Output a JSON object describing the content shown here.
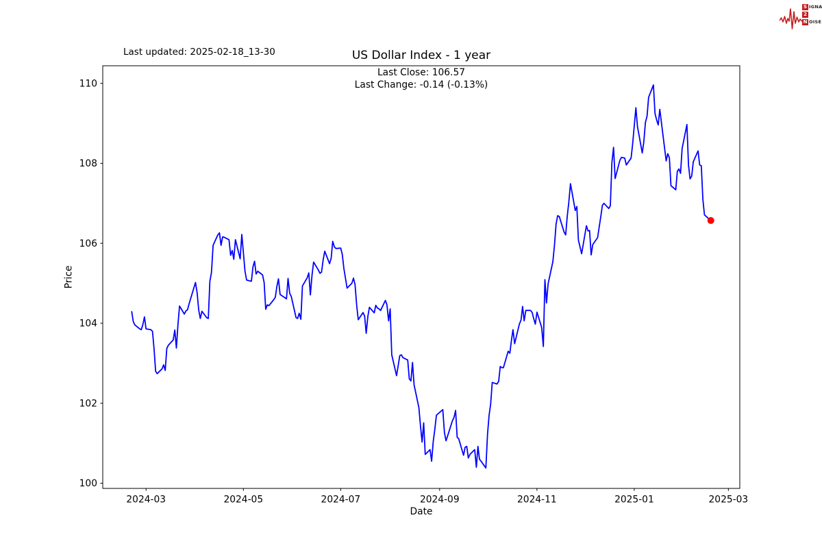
{
  "header": {
    "last_updated": "Last updated: 2025-02-18_13-30"
  },
  "logo": {
    "word1_initial": "S",
    "word1_rest": "IGNAL",
    "word2_initial": "2",
    "word2_rest": "",
    "word3_initial": "N",
    "word3_rest": "OISE",
    "color": "#c41f1f",
    "icon": "waveform-icon"
  },
  "chart_data": {
    "type": "line",
    "title": "US Dollar Index - 1 year",
    "last_close_label": "Last Close: 106.57",
    "last_change_label": "Last Change: -0.14 (-0.13%)",
    "last_close": 106.57,
    "last_change": -0.14,
    "last_change_pct": "-0.13%",
    "xlabel": "Date",
    "ylabel": "Price",
    "x_ticks": [
      "2024-03",
      "2024-05",
      "2024-07",
      "2024-09",
      "2024-11",
      "2025-01",
      "2025-03"
    ],
    "y_ticks": [
      100,
      102,
      104,
      106,
      108,
      110
    ],
    "ylim": [
      99.87,
      110.44
    ],
    "x_epoch": "2024-03-01",
    "xlim_days": [
      -27.15,
      372.15
    ],
    "grid": false,
    "legend": "none",
    "line_color": "#0000ff",
    "last_point_color": "#ff0000",
    "axis_color": "#000000",
    "points": [
      [
        "2024-02-21",
        104.29
      ],
      [
        "2024-02-22",
        104.04
      ],
      [
        "2024-02-23",
        103.96
      ],
      [
        "2024-02-26",
        103.86
      ],
      [
        "2024-02-27",
        103.84
      ],
      [
        "2024-02-28",
        103.97
      ],
      [
        "2024-02-29",
        104.16
      ],
      [
        "2024-03-01",
        103.86
      ],
      [
        "2024-03-04",
        103.84
      ],
      [
        "2024-03-05",
        103.8
      ],
      [
        "2024-03-06",
        103.36
      ],
      [
        "2024-03-07",
        102.8
      ],
      [
        "2024-03-08",
        102.74
      ],
      [
        "2024-03-11",
        102.86
      ],
      [
        "2024-03-12",
        102.96
      ],
      [
        "2024-03-13",
        102.82
      ],
      [
        "2024-03-14",
        103.37
      ],
      [
        "2024-03-15",
        103.45
      ],
      [
        "2024-03-18",
        103.58
      ],
      [
        "2024-03-19",
        103.83
      ],
      [
        "2024-03-20",
        103.38
      ],
      [
        "2024-03-21",
        103.97
      ],
      [
        "2024-03-22",
        104.43
      ],
      [
        "2024-03-25",
        104.23
      ],
      [
        "2024-03-26",
        104.31
      ],
      [
        "2024-03-27",
        104.34
      ],
      [
        "2024-03-28",
        104.49
      ],
      [
        "2024-04-01",
        105.02
      ],
      [
        "2024-04-02",
        104.76
      ],
      [
        "2024-04-03",
        104.33
      ],
      [
        "2024-04-04",
        104.12
      ],
      [
        "2024-04-05",
        104.3
      ],
      [
        "2024-04-08",
        104.14
      ],
      [
        "2024-04-09",
        104.12
      ],
      [
        "2024-04-10",
        105.05
      ],
      [
        "2024-04-11",
        105.27
      ],
      [
        "2024-04-12",
        105.95
      ],
      [
        "2024-04-15",
        106.21
      ],
      [
        "2024-04-16",
        106.26
      ],
      [
        "2024-04-17",
        105.95
      ],
      [
        "2024-04-18",
        106.16
      ],
      [
        "2024-04-19",
        106.15
      ],
      [
        "2024-04-22",
        106.09
      ],
      [
        "2024-04-23",
        105.7
      ],
      [
        "2024-04-24",
        105.82
      ],
      [
        "2024-04-25",
        105.6
      ],
      [
        "2024-04-26",
        106.09
      ],
      [
        "2024-04-29",
        105.61
      ],
      [
        "2024-04-30",
        106.22
      ],
      [
        "2024-05-01",
        105.77
      ],
      [
        "2024-05-02",
        105.31
      ],
      [
        "2024-05-03",
        105.08
      ],
      [
        "2024-05-06",
        105.05
      ],
      [
        "2024-05-07",
        105.41
      ],
      [
        "2024-05-08",
        105.55
      ],
      [
        "2024-05-09",
        105.23
      ],
      [
        "2024-05-10",
        105.3
      ],
      [
        "2024-05-13",
        105.21
      ],
      [
        "2024-05-14",
        105.02
      ],
      [
        "2024-05-15",
        104.35
      ],
      [
        "2024-05-16",
        104.46
      ],
      [
        "2024-05-17",
        104.44
      ],
      [
        "2024-05-20",
        104.59
      ],
      [
        "2024-05-21",
        104.65
      ],
      [
        "2024-05-22",
        104.92
      ],
      [
        "2024-05-23",
        105.11
      ],
      [
        "2024-05-24",
        104.72
      ],
      [
        "2024-05-28",
        104.61
      ],
      [
        "2024-05-29",
        105.12
      ],
      [
        "2024-05-30",
        104.75
      ],
      [
        "2024-05-31",
        104.67
      ],
      [
        "2024-06-03",
        104.14
      ],
      [
        "2024-06-04",
        104.12
      ],
      [
        "2024-06-05",
        104.25
      ],
      [
        "2024-06-06",
        104.1
      ],
      [
        "2024-06-07",
        104.93
      ],
      [
        "2024-06-10",
        105.14
      ],
      [
        "2024-06-11",
        105.26
      ],
      [
        "2024-06-12",
        104.71
      ],
      [
        "2024-06-13",
        105.2
      ],
      [
        "2024-06-14",
        105.53
      ],
      [
        "2024-06-17",
        105.33
      ],
      [
        "2024-06-18",
        105.25
      ],
      [
        "2024-06-19",
        105.28
      ],
      [
        "2024-06-20",
        105.59
      ],
      [
        "2024-06-21",
        105.8
      ],
      [
        "2024-06-24",
        105.49
      ],
      [
        "2024-06-25",
        105.62
      ],
      [
        "2024-06-26",
        106.05
      ],
      [
        "2024-06-27",
        105.91
      ],
      [
        "2024-06-28",
        105.87
      ],
      [
        "2024-07-01",
        105.88
      ],
      [
        "2024-07-02",
        105.72
      ],
      [
        "2024-07-03",
        105.37
      ],
      [
        "2024-07-05",
        104.88
      ],
      [
        "2024-07-08",
        105.0
      ],
      [
        "2024-07-09",
        105.13
      ],
      [
        "2024-07-10",
        104.97
      ],
      [
        "2024-07-11",
        104.45
      ],
      [
        "2024-07-12",
        104.09
      ],
      [
        "2024-07-15",
        104.27
      ],
      [
        "2024-07-16",
        104.18
      ],
      [
        "2024-07-17",
        103.75
      ],
      [
        "2024-07-18",
        104.17
      ],
      [
        "2024-07-19",
        104.4
      ],
      [
        "2024-07-22",
        104.26
      ],
      [
        "2024-07-23",
        104.45
      ],
      [
        "2024-07-24",
        104.38
      ],
      [
        "2024-07-25",
        104.36
      ],
      [
        "2024-07-26",
        104.32
      ],
      [
        "2024-07-29",
        104.57
      ],
      [
        "2024-07-30",
        104.46
      ],
      [
        "2024-07-31",
        104.06
      ],
      [
        "2024-08-01",
        104.36
      ],
      [
        "2024-08-02",
        103.21
      ],
      [
        "2024-08-05",
        102.69
      ],
      [
        "2024-08-06",
        102.93
      ],
      [
        "2024-08-07",
        103.19
      ],
      [
        "2024-08-08",
        103.21
      ],
      [
        "2024-08-09",
        103.14
      ],
      [
        "2024-08-12",
        103.08
      ],
      [
        "2024-08-13",
        102.61
      ],
      [
        "2024-08-14",
        102.56
      ],
      [
        "2024-08-15",
        103.02
      ],
      [
        "2024-08-16",
        102.46
      ],
      [
        "2024-08-19",
        101.89
      ],
      [
        "2024-08-20",
        101.44
      ],
      [
        "2024-08-21",
        101.03
      ],
      [
        "2024-08-22",
        101.51
      ],
      [
        "2024-08-23",
        100.72
      ],
      [
        "2024-08-26",
        100.84
      ],
      [
        "2024-08-27",
        100.55
      ],
      [
        "2024-08-28",
        101.05
      ],
      [
        "2024-08-29",
        101.35
      ],
      [
        "2024-08-30",
        101.7
      ],
      [
        "2024-09-03",
        101.84
      ],
      [
        "2024-09-04",
        101.27
      ],
      [
        "2024-09-05",
        101.06
      ],
      [
        "2024-09-06",
        101.18
      ],
      [
        "2024-09-09",
        101.56
      ],
      [
        "2024-09-10",
        101.64
      ],
      [
        "2024-09-11",
        101.82
      ],
      [
        "2024-09-12",
        101.15
      ],
      [
        "2024-09-13",
        101.11
      ],
      [
        "2024-09-16",
        100.7
      ],
      [
        "2024-09-17",
        100.9
      ],
      [
        "2024-09-18",
        100.92
      ],
      [
        "2024-09-19",
        100.63
      ],
      [
        "2024-09-20",
        100.72
      ],
      [
        "2024-09-23",
        100.84
      ],
      [
        "2024-09-24",
        100.4
      ],
      [
        "2024-09-25",
        100.92
      ],
      [
        "2024-09-26",
        100.6
      ],
      [
        "2024-09-27",
        100.55
      ],
      [
        "2024-09-30",
        100.38
      ],
      [
        "2024-10-01",
        101.22
      ],
      [
        "2024-10-02",
        101.7
      ],
      [
        "2024-10-03",
        101.98
      ],
      [
        "2024-10-04",
        102.52
      ],
      [
        "2024-10-07",
        102.48
      ],
      [
        "2024-10-08",
        102.55
      ],
      [
        "2024-10-09",
        102.92
      ],
      [
        "2024-10-10",
        102.89
      ],
      [
        "2024-10-11",
        102.89
      ],
      [
        "2024-10-14",
        103.3
      ],
      [
        "2024-10-15",
        103.25
      ],
      [
        "2024-10-16",
        103.57
      ],
      [
        "2024-10-17",
        103.84
      ],
      [
        "2024-10-18",
        103.49
      ],
      [
        "2024-10-21",
        103.98
      ],
      [
        "2024-10-22",
        104.08
      ],
      [
        "2024-10-23",
        104.42
      ],
      [
        "2024-10-24",
        104.06
      ],
      [
        "2024-10-25",
        104.32
      ],
      [
        "2024-10-28",
        104.32
      ],
      [
        "2024-10-29",
        104.27
      ],
      [
        "2024-10-30",
        104.11
      ],
      [
        "2024-10-31",
        103.98
      ],
      [
        "2024-11-01",
        104.28
      ],
      [
        "2024-11-04",
        103.89
      ],
      [
        "2024-11-05",
        103.42
      ],
      [
        "2024-11-06",
        105.09
      ],
      [
        "2024-11-07",
        104.51
      ],
      [
        "2024-11-08",
        104.99
      ],
      [
        "2024-11-11",
        105.54
      ],
      [
        "2024-11-12",
        105.96
      ],
      [
        "2024-11-13",
        106.48
      ],
      [
        "2024-11-14",
        106.69
      ],
      [
        "2024-11-15",
        106.67
      ],
      [
        "2024-11-18",
        106.28
      ],
      [
        "2024-11-19",
        106.21
      ],
      [
        "2024-11-20",
        106.68
      ],
      [
        "2024-11-21",
        107.03
      ],
      [
        "2024-11-22",
        107.49
      ],
      [
        "2024-11-25",
        106.82
      ],
      [
        "2024-11-26",
        106.92
      ],
      [
        "2024-11-27",
        106.08
      ],
      [
        "2024-11-29",
        105.74
      ],
      [
        "2024-12-02",
        106.44
      ],
      [
        "2024-12-03",
        106.31
      ],
      [
        "2024-12-04",
        106.32
      ],
      [
        "2024-12-05",
        105.71
      ],
      [
        "2024-12-06",
        105.97
      ],
      [
        "2024-12-09",
        106.14
      ],
      [
        "2024-12-10",
        106.4
      ],
      [
        "2024-12-11",
        106.66
      ],
      [
        "2024-12-12",
        106.95
      ],
      [
        "2024-12-13",
        107.0
      ],
      [
        "2024-12-16",
        106.87
      ],
      [
        "2024-12-17",
        106.94
      ],
      [
        "2024-12-18",
        108.02
      ],
      [
        "2024-12-19",
        108.4
      ],
      [
        "2024-12-20",
        107.62
      ],
      [
        "2024-12-23",
        108.08
      ],
      [
        "2024-12-24",
        108.15
      ],
      [
        "2024-12-26",
        108.13
      ],
      [
        "2024-12-27",
        107.96
      ],
      [
        "2024-12-30",
        108.13
      ],
      [
        "2024-12-31",
        108.49
      ],
      [
        "2025-01-02",
        109.39
      ],
      [
        "2025-01-03",
        108.92
      ],
      [
        "2025-01-06",
        108.26
      ],
      [
        "2025-01-07",
        108.54
      ],
      [
        "2025-01-08",
        109.02
      ],
      [
        "2025-01-09",
        109.18
      ],
      [
        "2025-01-10",
        109.65
      ],
      [
        "2025-01-13",
        109.96
      ],
      [
        "2025-01-14",
        109.25
      ],
      [
        "2025-01-15",
        109.09
      ],
      [
        "2025-01-16",
        108.96
      ],
      [
        "2025-01-17",
        109.35
      ],
      [
        "2025-01-21",
        108.06
      ],
      [
        "2025-01-22",
        108.24
      ],
      [
        "2025-01-23",
        108.14
      ],
      [
        "2025-01-24",
        107.44
      ],
      [
        "2025-01-27",
        107.34
      ],
      [
        "2025-01-28",
        107.8
      ],
      [
        "2025-01-29",
        107.86
      ],
      [
        "2025-01-30",
        107.75
      ],
      [
        "2025-01-31",
        108.37
      ],
      [
        "2025-02-03",
        108.97
      ],
      [
        "2025-02-04",
        107.96
      ],
      [
        "2025-02-05",
        107.61
      ],
      [
        "2025-02-06",
        107.68
      ],
      [
        "2025-02-07",
        108.04
      ],
      [
        "2025-02-10",
        108.31
      ],
      [
        "2025-02-11",
        107.96
      ],
      [
        "2025-02-12",
        107.94
      ],
      [
        "2025-02-13",
        107.1
      ],
      [
        "2025-02-14",
        106.71
      ],
      [
        "2025-02-18",
        106.57
      ]
    ]
  }
}
